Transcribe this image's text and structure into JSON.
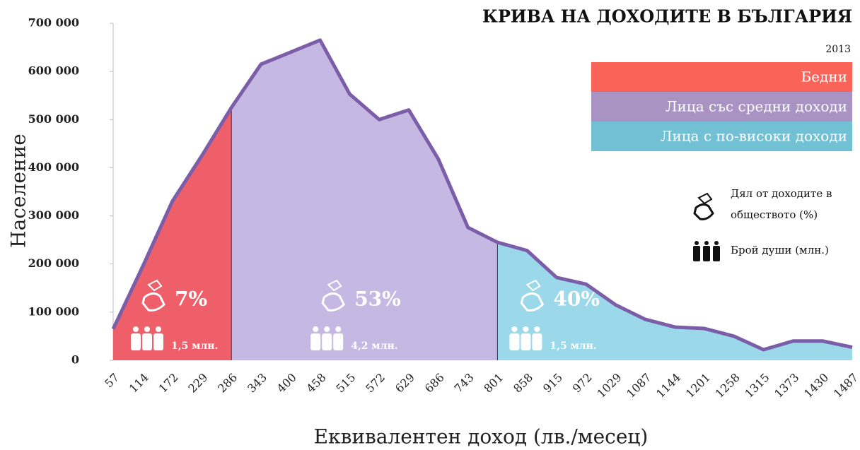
{
  "chart_data": {
    "type": "area",
    "title": "КРИВА НА ДОХОДИТЕ В БЪЛГАРИЯ",
    "subtitle": "2013",
    "x_label": "Еквивалентен доход (лв./месец)",
    "y_label": "Население",
    "categories": [
      "57",
      "114",
      "172",
      "229",
      "286",
      "343",
      "400",
      "458",
      "515",
      "572",
      "629",
      "686",
      "743",
      "801",
      "858",
      "915",
      "972",
      "1029",
      "1087",
      "1144",
      "1201",
      "1258",
      "1315",
      "1373",
      "1430",
      "1487"
    ],
    "values": [
      65000,
      195000,
      330000,
      425000,
      525000,
      615000,
      640000,
      665000,
      553000,
      500000,
      520000,
      418000,
      276000,
      245000,
      228000,
      172000,
      158000,
      115000,
      85000,
      69000,
      66000,
      50000,
      22000,
      40000,
      40000,
      27000
    ],
    "line_color": "#7b5ea7",
    "ylim": [
      0,
      700000
    ],
    "yticks": [
      0,
      {
        "value": 100000,
        "label": "100 000"
      },
      {
        "value": 200000,
        "label": "200 000"
      },
      {
        "value": 300000,
        "label": "300 000"
      },
      {
        "value": 400000,
        "label": "400 000"
      },
      {
        "value": 500000,
        "label": "500 000"
      },
      {
        "value": 600000,
        "label": "600 000"
      },
      {
        "value": 700000,
        "label": "700 000"
      }
    ],
    "regions": [
      {
        "name": "Бедни",
        "color": "#ef5f6a",
        "legend_color": "#fa6358",
        "range": [
          "57",
          "286"
        ],
        "share": "7%",
        "people": "1,5 млн."
      },
      {
        "name": "Лица със средни доходи",
        "color": "#c5b8e3",
        "legend_color": "#a893c3",
        "range": [
          "286",
          "801"
        ],
        "share": "53%",
        "people": "4,2 млн."
      },
      {
        "name": "Лица с по-високи доходи",
        "color": "#9bd8ea",
        "legend_color": "#72c0d4",
        "range": [
          "801",
          "1487"
        ],
        "share": "40%",
        "people": "1,5 млн."
      }
    ],
    "icon_legend": {
      "share": [
        "Дял от доходите в",
        "обществото (%)"
      ],
      "people": "Брой души (млн.)"
    }
  }
}
